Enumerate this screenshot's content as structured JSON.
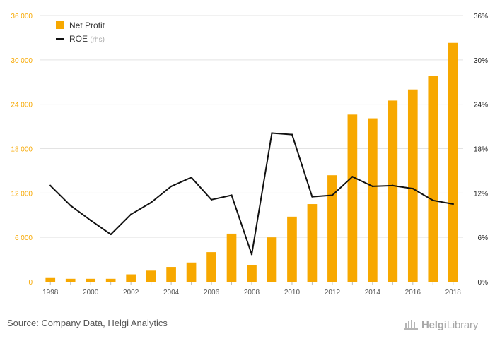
{
  "chart_data": {
    "type": "bar+line",
    "categories": [
      "1998",
      "1999",
      "2000",
      "2001",
      "2002",
      "2003",
      "2004",
      "2005",
      "2006",
      "2007",
      "2008",
      "2009",
      "2010",
      "2011",
      "2012",
      "2013",
      "2014",
      "2015",
      "2016",
      "2017",
      "2018"
    ],
    "x_tick_labels": [
      "1998",
      "2000",
      "2002",
      "2004",
      "2006",
      "2008",
      "2010",
      "2012",
      "2014",
      "2016",
      "2018"
    ],
    "series": [
      {
        "name": "Net Profit",
        "type": "bar",
        "axis": "left",
        "color": "#f7a800",
        "values": [
          500,
          400,
          400,
          400,
          1000,
          1500,
          2000,
          2600,
          4000,
          6500,
          2200,
          6000,
          8800,
          10500,
          14400,
          22600,
          22100,
          24500,
          26000,
          27800,
          32300
        ]
      },
      {
        "name": "ROE",
        "name_suffix": "(rhs)",
        "type": "line",
        "axis": "right",
        "color": "#111111",
        "values": [
          13.0,
          10.3,
          8.3,
          6.4,
          9.1,
          10.7,
          12.9,
          14.1,
          11.1,
          11.7,
          3.7,
          20.1,
          19.9,
          11.5,
          11.7,
          14.2,
          12.9,
          13.0,
          12.6,
          11.0,
          10.5
        ]
      }
    ],
    "y_left": {
      "lim": [
        0,
        36000
      ],
      "ticks": [
        "0",
        "6 000",
        "12 000",
        "18 000",
        "24 000",
        "30 000",
        "36 000"
      ],
      "tick_values": [
        0,
        6000,
        12000,
        18000,
        24000,
        30000,
        36000
      ],
      "color": "#f7a800"
    },
    "y_right": {
      "lim": [
        0,
        36
      ],
      "ticks": [
        "0%",
        "6%",
        "12%",
        "18%",
        "24%",
        "30%",
        "36%"
      ],
      "tick_values": [
        0,
        6,
        12,
        18,
        24,
        30,
        36
      ],
      "color": "#222222"
    },
    "grid": true,
    "legend": "top-left",
    "title": "",
    "xlabel": "",
    "ylabel": ""
  },
  "footer": {
    "source": "Source: Company Data, Helgi Analytics",
    "logo_main": "Helgi",
    "logo_sub": "Library"
  }
}
